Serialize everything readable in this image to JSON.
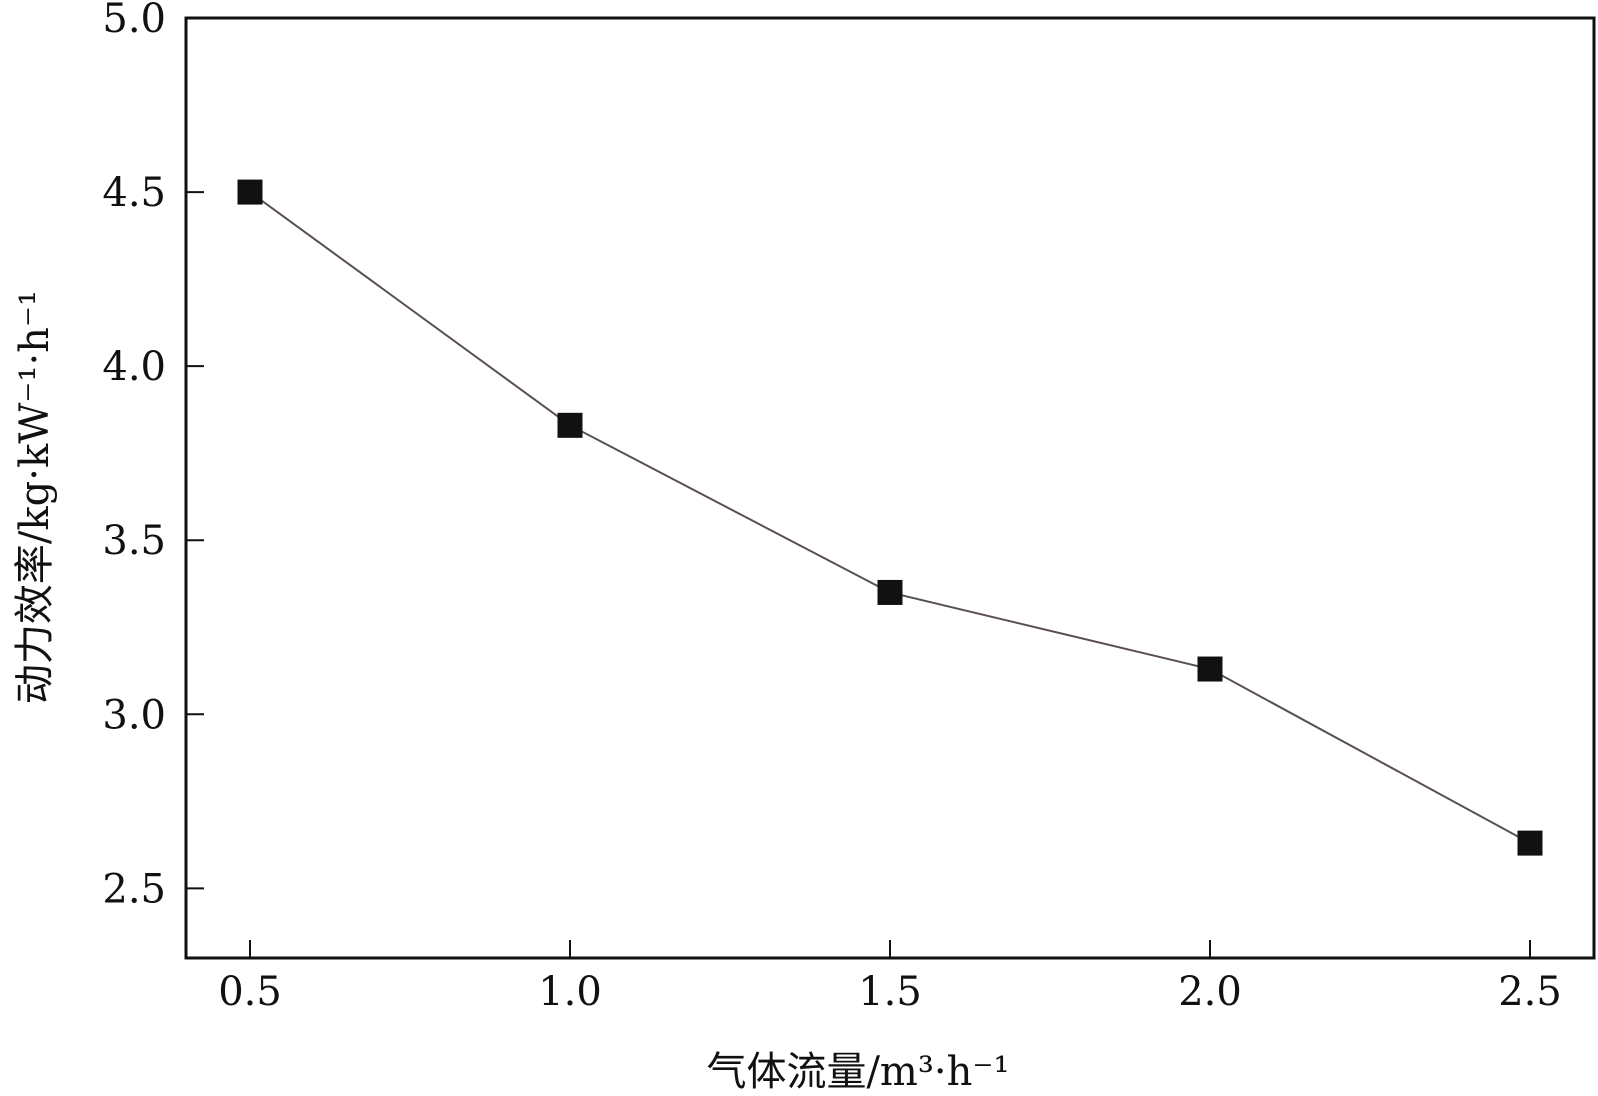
{
  "chart_data": {
    "type": "line",
    "title": "",
    "xlabel": "气体流量/m³·h⁻¹",
    "ylabel": "动力效率/kg·kW⁻¹·h⁻¹",
    "x": [
      0.5,
      1.0,
      1.5,
      2.0,
      2.5
    ],
    "series": [
      {
        "values": [
          4.5,
          3.83,
          3.35,
          3.13,
          2.63
        ]
      }
    ],
    "xlim": [
      0.4,
      2.6
    ],
    "ylim": [
      2.3,
      5.0
    ],
    "xticks": [
      "0.5",
      "1.0",
      "1.5",
      "2.0",
      "2.5"
    ],
    "yticks": [
      "2.5",
      "3.0",
      "3.5",
      "4.0",
      "4.5",
      "5.0"
    ],
    "grid": false,
    "legend": "none",
    "marker": "square",
    "colors": {
      "line": "#5a4f4f",
      "marker": "#111111",
      "axis": "#111111",
      "text": "#111111"
    }
  }
}
